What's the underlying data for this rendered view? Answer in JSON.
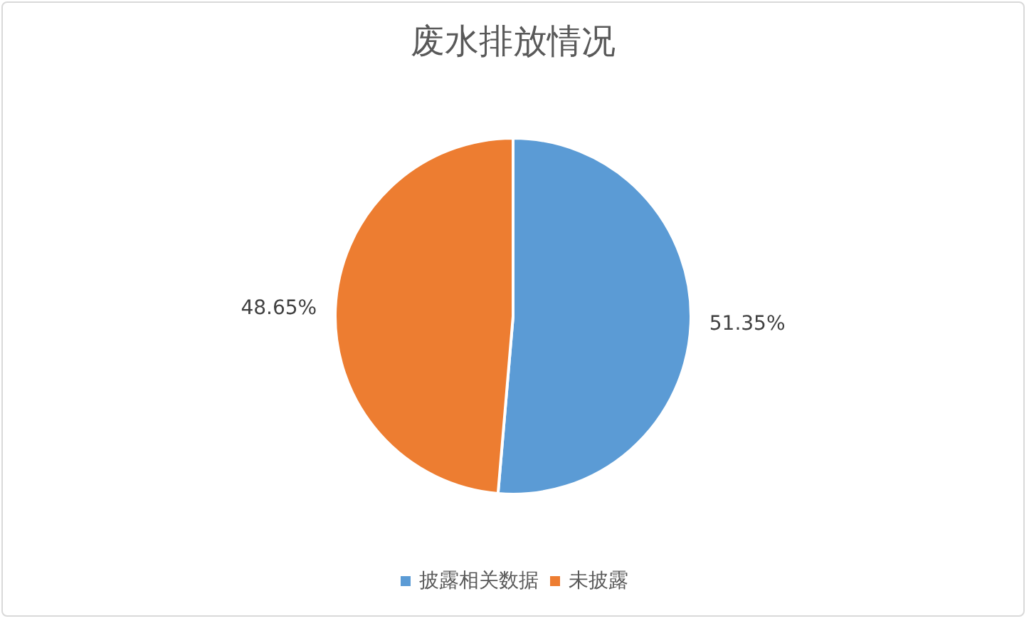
{
  "chart_data": {
    "type": "pie",
    "title": "废水排放情况",
    "categories": [
      "披露相关数据",
      "未披露"
    ],
    "values": [
      51.35,
      48.65
    ],
    "colors": [
      "#5b9bd5",
      "#ed7d31"
    ],
    "value_labels": [
      "51.35%",
      "48.65%"
    ],
    "legend": "bottom"
  }
}
